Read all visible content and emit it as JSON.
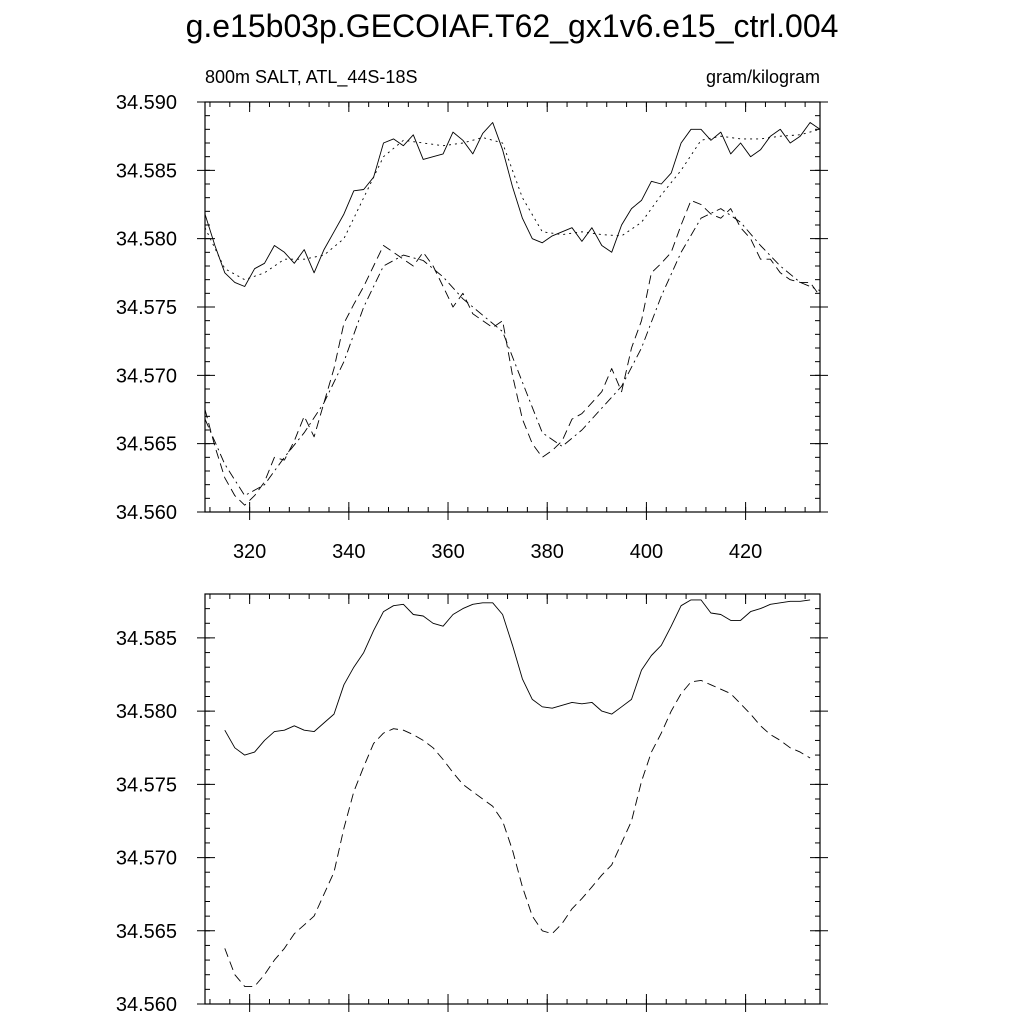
{
  "page_title": "g.e15b03p.GECOIAF.T62_gx1v6.e15_ctrl.004",
  "chart_data": [
    {
      "type": "line",
      "subtitle_left": "800m SALT, ATL_44S-18S",
      "subtitle_right": "gram/kilogram",
      "xlim": [
        311,
        435
      ],
      "ylim": [
        34.56,
        34.59
      ],
      "x_ticks": [
        320,
        340,
        360,
        380,
        400,
        420
      ],
      "x_tick_labels": [
        "320",
        "340",
        "360",
        "380",
        "400",
        "420"
      ],
      "y_ticks": [
        34.56,
        34.565,
        34.57,
        34.575,
        34.58,
        34.585,
        34.59
      ],
      "y_tick_labels": [
        "34.560",
        "34.565",
        "34.570",
        "34.575",
        "34.580",
        "34.585",
        "34.590"
      ],
      "grid": false,
      "series": [
        {
          "style": "solid",
          "x": [
            311,
            313,
            315,
            317,
            319,
            321,
            323,
            325,
            327,
            329,
            331,
            333,
            335,
            337,
            339,
            341,
            343,
            345,
            347,
            349,
            351,
            353,
            355,
            357,
            359,
            361,
            363,
            365,
            367,
            369,
            371,
            373,
            375,
            377,
            379,
            381,
            383,
            385,
            387,
            389,
            391,
            393,
            395,
            397,
            399,
            401,
            403,
            405,
            407,
            409,
            411,
            413,
            415,
            417,
            419,
            421,
            423,
            425,
            427,
            429,
            431,
            433,
            435
          ],
          "values": [
            34.5818,
            34.5795,
            34.5775,
            34.5768,
            34.5765,
            34.5778,
            34.5782,
            34.5795,
            34.579,
            34.5782,
            34.5792,
            34.5775,
            34.5792,
            34.5805,
            34.5818,
            34.5835,
            34.5836,
            34.5845,
            34.587,
            34.5873,
            34.5868,
            34.5876,
            34.5858,
            34.586,
            34.5862,
            34.5878,
            34.5872,
            34.5862,
            34.5877,
            34.5885,
            34.5865,
            34.5838,
            34.5815,
            34.58,
            34.5797,
            34.5802,
            34.5805,
            34.5808,
            34.5798,
            34.5808,
            34.5795,
            34.579,
            34.581,
            34.5822,
            34.5828,
            34.5842,
            34.584,
            34.5848,
            34.587,
            34.588,
            34.588,
            34.5872,
            34.5878,
            34.5862,
            34.587,
            34.586,
            34.5865,
            34.5875,
            34.588,
            34.587,
            34.5875,
            34.5885,
            34.588
          ]
        },
        {
          "style": "dotted",
          "x": [
            311,
            315,
            319,
            323,
            327,
            331,
            335,
            339,
            343,
            347,
            351,
            355,
            359,
            363,
            367,
            371,
            375,
            379,
            383,
            387,
            391,
            395,
            399,
            403,
            407,
            411,
            415,
            419,
            423,
            427,
            431,
            435
          ],
          "values": [
            34.5808,
            34.5778,
            34.577,
            34.5775,
            34.5785,
            34.5785,
            34.5788,
            34.58,
            34.583,
            34.586,
            34.5872,
            34.587,
            34.5868,
            34.587,
            34.5874,
            34.587,
            34.583,
            34.5805,
            34.5803,
            34.5805,
            34.5803,
            34.5802,
            34.5812,
            34.5832,
            34.585,
            34.5872,
            34.5875,
            34.5873,
            34.5873,
            34.5875,
            34.5876,
            34.588
          ]
        },
        {
          "style": "dashed",
          "x": [
            311,
            313,
            315,
            317,
            319,
            321,
            323,
            325,
            327,
            329,
            331,
            333,
            335,
            337,
            339,
            341,
            343,
            345,
            347,
            349,
            351,
            353,
            355,
            357,
            359,
            361,
            363,
            365,
            367,
            369,
            371,
            373,
            375,
            377,
            379,
            381,
            383,
            385,
            387,
            389,
            391,
            393,
            395,
            397,
            399,
            401,
            403,
            405,
            407,
            409,
            411,
            413,
            415,
            417,
            419,
            421,
            423,
            425,
            427,
            429,
            431,
            433,
            435
          ],
          "values": [
            34.5675,
            34.5648,
            34.5625,
            34.5612,
            34.5605,
            34.5612,
            34.5622,
            34.564,
            34.5638,
            34.5652,
            34.567,
            34.5655,
            34.568,
            34.5705,
            34.5738,
            34.5752,
            34.5765,
            34.578,
            34.5795,
            34.579,
            34.5785,
            34.578,
            34.579,
            34.578,
            34.5765,
            34.575,
            34.576,
            34.5745,
            34.574,
            34.5735,
            34.574,
            34.57,
            34.5668,
            34.565,
            34.564,
            34.5645,
            34.5652,
            34.5668,
            34.5672,
            34.568,
            34.5688,
            34.5705,
            34.5688,
            34.572,
            34.574,
            34.5775,
            34.5782,
            34.579,
            34.581,
            34.5828,
            34.5825,
            34.5818,
            34.5815,
            34.5822,
            34.5808,
            34.58,
            34.5785,
            34.5785,
            34.5775,
            34.577,
            34.5768,
            34.5768,
            34.5758
          ]
        },
        {
          "style": "dash-dot",
          "x": [
            311,
            315,
            319,
            323,
            327,
            331,
            335,
            339,
            343,
            347,
            351,
            355,
            359,
            363,
            367,
            371,
            375,
            379,
            383,
            387,
            391,
            395,
            399,
            403,
            407,
            411,
            415,
            419,
            423,
            427,
            431,
            435
          ],
          "values": [
            34.5668,
            34.5635,
            34.5612,
            34.562,
            34.564,
            34.5658,
            34.568,
            34.571,
            34.575,
            34.578,
            34.5788,
            34.5784,
            34.5772,
            34.5756,
            34.5744,
            34.5732,
            34.5695,
            34.5658,
            34.5648,
            34.566,
            34.5676,
            34.5692,
            34.572,
            34.5758,
            34.579,
            34.5815,
            34.5822,
            34.5812,
            34.5795,
            34.578,
            34.5768,
            34.5762
          ]
        }
      ]
    },
    {
      "type": "line",
      "xlim": [
        311,
        435
      ],
      "ylim": [
        34.56,
        34.588
      ],
      "x_ticks": [
        320,
        340,
        360,
        380,
        400,
        420
      ],
      "y_ticks": [
        34.56,
        34.565,
        34.57,
        34.575,
        34.58,
        34.585
      ],
      "y_tick_labels": [
        "34.560",
        "34.565",
        "34.570",
        "34.575",
        "34.580",
        "34.585"
      ],
      "grid": false,
      "series": [
        {
          "style": "solid",
          "x": [
            315,
            317,
            319,
            321,
            323,
            325,
            327,
            329,
            331,
            333,
            335,
            337,
            339,
            341,
            343,
            345,
            347,
            349,
            351,
            353,
            355,
            357,
            359,
            361,
            363,
            365,
            367,
            369,
            371,
            373,
            375,
            377,
            379,
            381,
            383,
            385,
            387,
            389,
            391,
            393,
            395,
            397,
            399,
            401,
            403,
            405,
            407,
            409,
            411,
            413,
            415,
            417,
            419,
            421,
            423,
            425,
            427,
            429,
            431,
            433
          ],
          "values": [
            34.5787,
            34.5775,
            34.577,
            34.5772,
            34.578,
            34.5786,
            34.5787,
            34.579,
            34.5787,
            34.5786,
            34.5792,
            34.5798,
            34.5818,
            34.583,
            34.584,
            34.5855,
            34.5868,
            34.5872,
            34.5873,
            34.5866,
            34.5865,
            34.586,
            34.5858,
            34.5866,
            34.587,
            34.5873,
            34.5874,
            34.5874,
            34.5866,
            34.5845,
            34.5822,
            34.5808,
            34.5803,
            34.5802,
            34.5804,
            34.5806,
            34.5805,
            34.5806,
            34.58,
            34.5798,
            34.5803,
            34.5808,
            34.5828,
            34.5838,
            34.5845,
            34.5858,
            34.5872,
            34.5876,
            34.5876,
            34.5867,
            34.5866,
            34.5862,
            34.5862,
            34.5868,
            34.587,
            34.5873,
            34.5874,
            34.5875,
            34.5875,
            34.5876
          ]
        },
        {
          "style": "dashed",
          "x": [
            315,
            317,
            319,
            321,
            323,
            325,
            327,
            329,
            331,
            333,
            335,
            337,
            339,
            341,
            343,
            345,
            347,
            349,
            351,
            353,
            355,
            357,
            359,
            361,
            363,
            365,
            367,
            369,
            371,
            373,
            375,
            377,
            379,
            381,
            383,
            385,
            387,
            389,
            391,
            393,
            395,
            397,
            399,
            401,
            403,
            405,
            407,
            409,
            411,
            413,
            415,
            417,
            419,
            421,
            423,
            425,
            427,
            429,
            431,
            433
          ],
          "values": [
            34.5638,
            34.562,
            34.5612,
            34.5612,
            34.562,
            34.563,
            34.5638,
            34.5648,
            34.5654,
            34.566,
            34.5675,
            34.569,
            34.572,
            34.5745,
            34.5762,
            34.5778,
            34.5785,
            34.5788,
            34.5787,
            34.5784,
            34.578,
            34.5775,
            34.5767,
            34.5758,
            34.575,
            34.5745,
            34.574,
            34.5735,
            34.5725,
            34.5705,
            34.568,
            34.566,
            34.565,
            34.5648,
            34.5655,
            34.5665,
            34.5672,
            34.568,
            34.5688,
            34.5695,
            34.571,
            34.5725,
            34.5752,
            34.5772,
            34.5785,
            34.58,
            34.5812,
            34.582,
            34.5821,
            34.5818,
            34.5815,
            34.5812,
            34.5805,
            34.5798,
            34.579,
            34.5784,
            34.578,
            34.5775,
            34.5772,
            34.5768
          ]
        }
      ]
    }
  ]
}
